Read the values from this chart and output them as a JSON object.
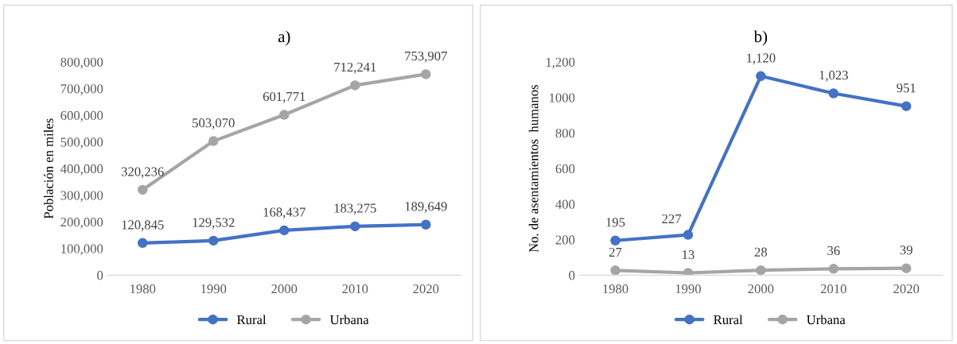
{
  "chart_data": [
    {
      "type": "line",
      "title": "a)",
      "ylabel": "Población en miles",
      "categories": [
        "1980",
        "1990",
        "2000",
        "2010",
        "2020"
      ],
      "series": [
        {
          "name": "Rural",
          "color": "#4472c4",
          "values": [
            120845,
            129532,
            168437,
            183275,
            189649
          ],
          "value_labels": [
            "120,845",
            "129,532",
            "168,437",
            "183,275",
            "189,649"
          ]
        },
        {
          "name": "Urbana",
          "color": "#a5a5a5",
          "values": [
            320236,
            503070,
            601771,
            712241,
            753907
          ],
          "value_labels": [
            "320,236",
            "503,070",
            "601,771",
            "712,241",
            "753,907"
          ]
        }
      ],
      "ylim": [
        0,
        800000
      ],
      "yticks": [
        0,
        {
          "value": 100000,
          "label": "100,000"
        },
        {
          "value": 200000,
          "label": "200,000"
        },
        {
          "value": 300000,
          "label": "300,000"
        },
        {
          "value": 400000,
          "label": "400,000"
        },
        {
          "value": 500000,
          "label": "500,000"
        },
        {
          "value": 600000,
          "label": "600,000"
        },
        {
          "value": 700000,
          "label": "700,000"
        },
        {
          "value": 800000,
          "label": "800,000"
        }
      ],
      "grid": false,
      "legend": "bottom",
      "marker": "circle",
      "line_style": "solid"
    },
    {
      "type": "line",
      "title": "b)",
      "ylabel": "No. de asentamientos  humanos",
      "categories": [
        "1980",
        "1990",
        "2000",
        "2010",
        "2020"
      ],
      "series": [
        {
          "name": "Rural",
          "color": "#4472c4",
          "values": [
            195,
            227,
            1120,
            1023,
            951
          ],
          "value_labels": [
            "195",
            "227",
            "1,120",
            "1,023",
            "951"
          ]
        },
        {
          "name": "Urbana",
          "color": "#a5a5a5",
          "values": [
            27,
            13,
            28,
            36,
            39
          ],
          "value_labels": [
            "27",
            "13",
            "28",
            "36",
            "39"
          ]
        }
      ],
      "ylim": [
        0,
        1200
      ],
      "yticks": [
        0,
        200,
        400,
        600,
        800,
        1000,
        {
          "value": 1200,
          "label": "1,200"
        }
      ],
      "grid": false,
      "legend": "bottom",
      "marker": "circle",
      "line_style": "solid"
    }
  ]
}
